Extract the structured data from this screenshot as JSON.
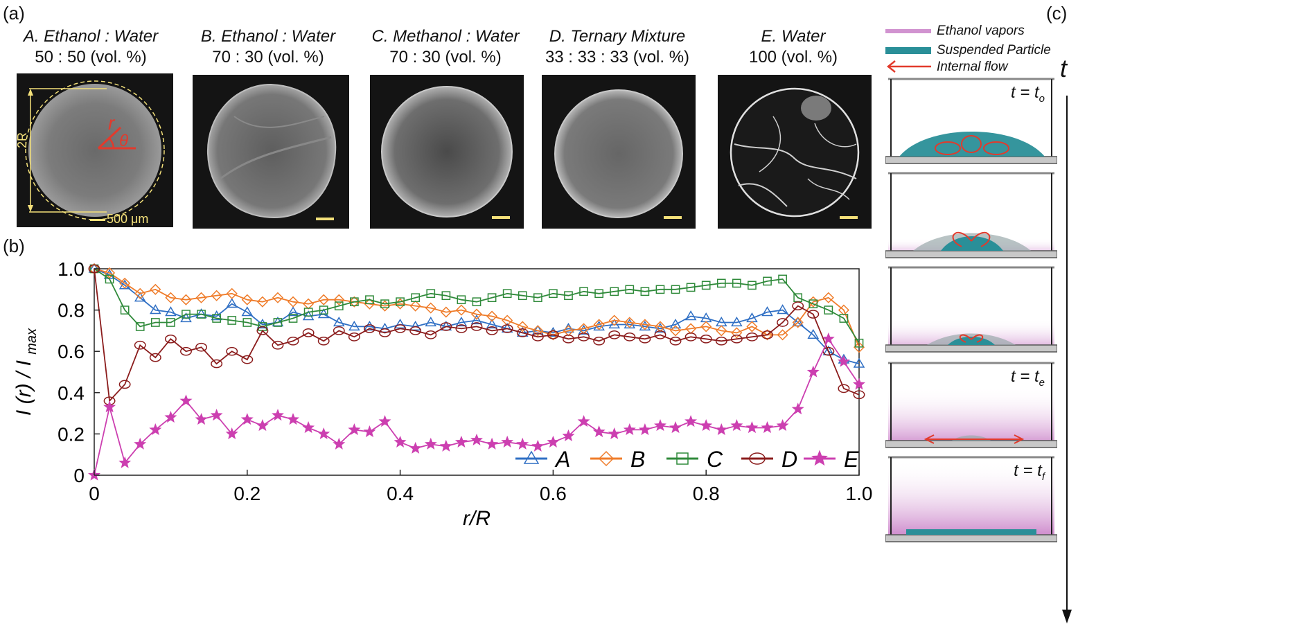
{
  "panel_labels": {
    "a": "(a)",
    "b": "(b)",
    "c": "(c)"
  },
  "micrographs": [
    {
      "line1": "A. Ethanol : Water",
      "line2": "50 : 50 (vol. %)"
    },
    {
      "line1": "B. Ethanol : Water",
      "line2": "70 : 30 (vol. %)"
    },
    {
      "line1": "C. Methanol : Water",
      "line2": "70 : 30 (vol. %)"
    },
    {
      "line1": "D. Ternary Mixture",
      "line2": "33 : 33 : 33 (vol. %)"
    },
    {
      "line1": "E. Water",
      "line2": "100 (vol. %)"
    }
  ],
  "annotations": {
    "diameter": "2R",
    "radius": "r",
    "angle": "θ",
    "scale_bar": "500 μm"
  },
  "colors": {
    "A": "#2f6fc4",
    "B": "#ef7c2a",
    "C": "#2f8a3a",
    "D": "#8b1c1c",
    "E": "#cc3fb0",
    "annotation_yellow": "#f3e07a",
    "annotation_red": "#e23a2c",
    "droplet_teal": "#2a8f98",
    "vapor_magenta": "#c678c4"
  },
  "schematic": {
    "legend": [
      {
        "label": "Ethanol vapors",
        "swatch": "vapor"
      },
      {
        "label": "Suspended Particle",
        "swatch": "particle"
      },
      {
        "label": "Internal flow",
        "swatch": "flow-arrow-icon"
      }
    ],
    "time_axis_label": "t",
    "stages": [
      "t = t",
      "",
      "",
      "t = t",
      "t = t"
    ],
    "stage_subscripts": [
      "o",
      "",
      "",
      "e",
      "f"
    ]
  },
  "chart_data": {
    "type": "line",
    "title": "",
    "xlabel": "r/R",
    "ylabel": "I (r) / I",
    "ylabel_subscript": "max",
    "xlim": [
      0,
      1.0
    ],
    "ylim": [
      0,
      1.0
    ],
    "xticks": [
      "0",
      "0.2",
      "0.4",
      "0.6",
      "0.8",
      "1.0"
    ],
    "yticks": [
      "0",
      "0.2",
      "0.4",
      "0.6",
      "0.8",
      "1.0"
    ],
    "legend_position": "bottom-right",
    "series": [
      {
        "name": "A",
        "marker": "triangle",
        "x": [
          0,
          0.02,
          0.04,
          0.06,
          0.08,
          0.1,
          0.12,
          0.14,
          0.16,
          0.18,
          0.2,
          0.22,
          0.24,
          0.26,
          0.28,
          0.3,
          0.32,
          0.34,
          0.36,
          0.38,
          0.4,
          0.42,
          0.44,
          0.46,
          0.48,
          0.5,
          0.52,
          0.54,
          0.56,
          0.58,
          0.6,
          0.62,
          0.64,
          0.66,
          0.68,
          0.7,
          0.72,
          0.74,
          0.76,
          0.78,
          0.8,
          0.82,
          0.84,
          0.86,
          0.88,
          0.9,
          0.92,
          0.94,
          0.96,
          0.98,
          1.0
        ],
        "y": [
          1.0,
          0.97,
          0.92,
          0.86,
          0.8,
          0.79,
          0.76,
          0.78,
          0.77,
          0.83,
          0.79,
          0.73,
          0.74,
          0.79,
          0.77,
          0.78,
          0.74,
          0.72,
          0.72,
          0.71,
          0.73,
          0.72,
          0.74,
          0.72,
          0.74,
          0.75,
          0.73,
          0.71,
          0.69,
          0.7,
          0.69,
          0.71,
          0.7,
          0.72,
          0.73,
          0.73,
          0.72,
          0.71,
          0.73,
          0.77,
          0.76,
          0.74,
          0.74,
          0.76,
          0.79,
          0.8,
          0.74,
          0.68,
          0.6,
          0.56,
          0.54
        ]
      },
      {
        "name": "B",
        "marker": "diamond",
        "x": [
          0,
          0.02,
          0.04,
          0.06,
          0.08,
          0.1,
          0.12,
          0.14,
          0.16,
          0.18,
          0.2,
          0.22,
          0.24,
          0.26,
          0.28,
          0.3,
          0.32,
          0.34,
          0.36,
          0.38,
          0.4,
          0.42,
          0.44,
          0.46,
          0.48,
          0.5,
          0.52,
          0.54,
          0.56,
          0.58,
          0.6,
          0.62,
          0.64,
          0.66,
          0.68,
          0.7,
          0.72,
          0.74,
          0.76,
          0.78,
          0.8,
          0.82,
          0.84,
          0.86,
          0.88,
          0.9,
          0.92,
          0.94,
          0.96,
          0.98,
          1.0
        ],
        "y": [
          1.0,
          0.98,
          0.93,
          0.88,
          0.9,
          0.86,
          0.85,
          0.86,
          0.87,
          0.88,
          0.85,
          0.84,
          0.86,
          0.84,
          0.83,
          0.85,
          0.85,
          0.84,
          0.83,
          0.82,
          0.83,
          0.82,
          0.81,
          0.79,
          0.8,
          0.78,
          0.77,
          0.75,
          0.72,
          0.7,
          0.68,
          0.7,
          0.71,
          0.73,
          0.75,
          0.74,
          0.73,
          0.72,
          0.7,
          0.71,
          0.72,
          0.7,
          0.69,
          0.72,
          0.68,
          0.68,
          0.74,
          0.84,
          0.86,
          0.8,
          0.62
        ]
      },
      {
        "name": "C",
        "marker": "square",
        "x": [
          0,
          0.02,
          0.04,
          0.06,
          0.08,
          0.1,
          0.12,
          0.14,
          0.16,
          0.18,
          0.2,
          0.22,
          0.24,
          0.26,
          0.28,
          0.3,
          0.32,
          0.34,
          0.36,
          0.38,
          0.4,
          0.42,
          0.44,
          0.46,
          0.48,
          0.5,
          0.52,
          0.54,
          0.56,
          0.58,
          0.6,
          0.62,
          0.64,
          0.66,
          0.68,
          0.7,
          0.72,
          0.74,
          0.76,
          0.78,
          0.8,
          0.82,
          0.84,
          0.86,
          0.88,
          0.9,
          0.92,
          0.94,
          0.96,
          0.98,
          1.0
        ],
        "y": [
          1.0,
          0.95,
          0.8,
          0.72,
          0.74,
          0.74,
          0.78,
          0.78,
          0.76,
          0.75,
          0.74,
          0.72,
          0.74,
          0.76,
          0.79,
          0.8,
          0.82,
          0.84,
          0.85,
          0.83,
          0.84,
          0.86,
          0.88,
          0.87,
          0.85,
          0.84,
          0.86,
          0.88,
          0.87,
          0.86,
          0.88,
          0.87,
          0.89,
          0.88,
          0.89,
          0.9,
          0.89,
          0.9,
          0.9,
          0.91,
          0.92,
          0.93,
          0.93,
          0.92,
          0.94,
          0.95,
          0.86,
          0.83,
          0.8,
          0.76,
          0.64
        ]
      },
      {
        "name": "D",
        "marker": "circle",
        "x": [
          0,
          0.02,
          0.04,
          0.06,
          0.08,
          0.1,
          0.12,
          0.14,
          0.16,
          0.18,
          0.2,
          0.22,
          0.24,
          0.26,
          0.28,
          0.3,
          0.32,
          0.34,
          0.36,
          0.38,
          0.4,
          0.42,
          0.44,
          0.46,
          0.48,
          0.5,
          0.52,
          0.54,
          0.56,
          0.58,
          0.6,
          0.62,
          0.64,
          0.66,
          0.68,
          0.7,
          0.72,
          0.74,
          0.76,
          0.78,
          0.8,
          0.82,
          0.84,
          0.86,
          0.88,
          0.9,
          0.92,
          0.94,
          0.96,
          0.98,
          1.0
        ],
        "y": [
          1.0,
          0.36,
          0.44,
          0.63,
          0.57,
          0.66,
          0.6,
          0.62,
          0.54,
          0.6,
          0.56,
          0.7,
          0.63,
          0.65,
          0.69,
          0.65,
          0.7,
          0.67,
          0.71,
          0.69,
          0.71,
          0.7,
          0.68,
          0.72,
          0.71,
          0.72,
          0.7,
          0.71,
          0.69,
          0.67,
          0.68,
          0.66,
          0.67,
          0.65,
          0.68,
          0.67,
          0.66,
          0.68,
          0.65,
          0.67,
          0.66,
          0.65,
          0.66,
          0.67,
          0.68,
          0.74,
          0.82,
          0.78,
          0.6,
          0.42,
          0.39
        ]
      },
      {
        "name": "E",
        "marker": "star",
        "x": [
          0,
          0.02,
          0.04,
          0.06,
          0.08,
          0.1,
          0.12,
          0.14,
          0.16,
          0.18,
          0.2,
          0.22,
          0.24,
          0.26,
          0.28,
          0.3,
          0.32,
          0.34,
          0.36,
          0.38,
          0.4,
          0.42,
          0.44,
          0.46,
          0.48,
          0.5,
          0.52,
          0.54,
          0.56,
          0.58,
          0.6,
          0.62,
          0.64,
          0.66,
          0.68,
          0.7,
          0.72,
          0.74,
          0.76,
          0.78,
          0.8,
          0.82,
          0.84,
          0.86,
          0.88,
          0.9,
          0.92,
          0.94,
          0.96,
          0.98,
          1.0
        ],
        "y": [
          0.0,
          0.33,
          0.06,
          0.15,
          0.22,
          0.28,
          0.36,
          0.27,
          0.29,
          0.2,
          0.27,
          0.24,
          0.29,
          0.27,
          0.23,
          0.2,
          0.15,
          0.22,
          0.21,
          0.26,
          0.16,
          0.13,
          0.15,
          0.14,
          0.16,
          0.17,
          0.15,
          0.16,
          0.15,
          0.14,
          0.16,
          0.19,
          0.26,
          0.21,
          0.2,
          0.22,
          0.22,
          0.24,
          0.23,
          0.26,
          0.24,
          0.22,
          0.24,
          0.23,
          0.23,
          0.24,
          0.32,
          0.5,
          0.66,
          0.55,
          0.44
        ]
      }
    ]
  }
}
